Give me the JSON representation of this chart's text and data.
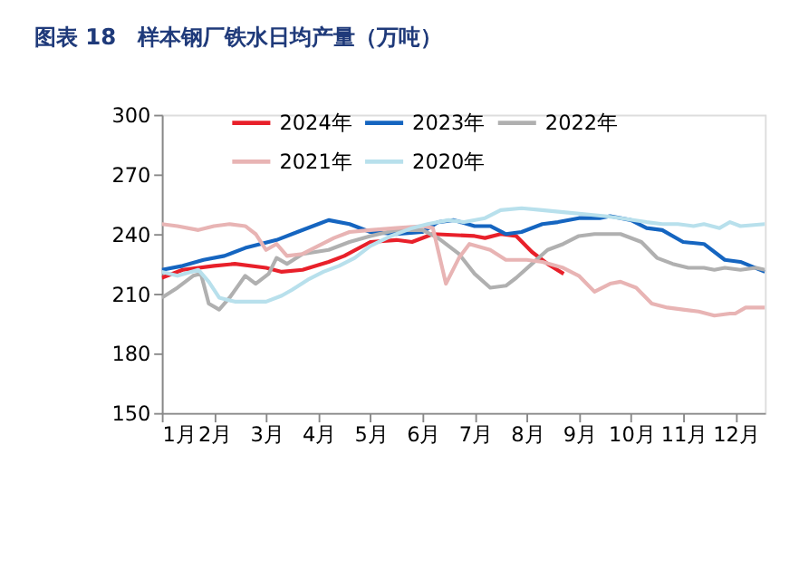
{
  "chart_data": {
    "type": "line",
    "title": "图表 18　样本钢厂铁水日均产量（万吨）",
    "xlim": [
      1,
      12.57
    ],
    "xticks": [
      {
        "value": 1,
        "label": "1月"
      },
      {
        "value": 2,
        "label": "2月"
      },
      {
        "value": 3,
        "label": "3月"
      },
      {
        "value": 4,
        "label": "4月"
      },
      {
        "value": 5,
        "label": "5月"
      },
      {
        "value": 6,
        "label": "6月"
      },
      {
        "value": 7,
        "label": "7月"
      },
      {
        "value": 8,
        "label": "8月"
      },
      {
        "value": 9,
        "label": "9月"
      },
      {
        "value": 10,
        "label": "10月"
      },
      {
        "value": 11,
        "label": "11月"
      },
      {
        "value": 12,
        "label": "12月"
      }
    ],
    "ylim": [
      150,
      300
    ],
    "yticks": [
      150,
      180,
      210,
      240,
      270,
      300
    ],
    "grid": false,
    "legend": "top",
    "marker": "none",
    "line_style": "solid",
    "series": [
      {
        "name": "2024年",
        "color": "#e8202a",
        "x": [
          1,
          1.4,
          2,
          2.4,
          3,
          3.3,
          3.7,
          4.2,
          4.5,
          5.0,
          5.5,
          5.8,
          6.2,
          7.0,
          7.2,
          7.5,
          7.8,
          8.1,
          8.4,
          8.71
        ],
        "values": [
          218,
          222,
          224,
          225,
          223,
          221,
          222,
          226,
          229,
          236,
          237,
          236,
          240,
          239,
          238,
          240,
          239,
          231,
          225,
          220
        ]
      },
      {
        "name": "2023年",
        "color": "#1565c0",
        "x": [
          1,
          1.4,
          1.8,
          2.2,
          2.6,
          3.2,
          3.6,
          4.0,
          4.2,
          4.6,
          5.0,
          5.5,
          6.0,
          6.3,
          6.6,
          7.0,
          7.3,
          7.6,
          7.9,
          8.3,
          8.6,
          9.0,
          9.4,
          9.6,
          10.0,
          10.3,
          10.6,
          11.0,
          11.4,
          11.8,
          12.1,
          12.57
        ],
        "values": [
          222,
          224,
          227,
          229,
          233,
          237,
          241,
          245,
          247,
          245,
          241,
          240,
          241,
          246,
          247,
          244,
          244,
          240,
          241,
          245,
          246,
          248,
          248,
          249,
          247,
          243,
          242,
          236,
          235,
          227,
          226,
          221
        ]
      },
      {
        "name": "2022年",
        "color": "#b0b0b0",
        "x": [
          1,
          1.3,
          1.6,
          1.75,
          1.9,
          2.1,
          2.3,
          2.6,
          2.8,
          3.05,
          3.2,
          3.4,
          3.7,
          4.2,
          4.6,
          5.0,
          5.5,
          6.0,
          6.3,
          6.7,
          7.0,
          7.3,
          7.6,
          7.8,
          8.1,
          8.4,
          8.7,
          9.0,
          9.3,
          9.8,
          10.2,
          10.5,
          10.8,
          11.1,
          11.4,
          11.6,
          11.8,
          12.1,
          12.4,
          12.57
        ],
        "values": [
          208,
          213,
          219,
          220,
          205,
          202,
          208,
          219,
          215,
          220,
          228,
          225,
          230,
          232,
          236,
          239,
          242,
          242,
          238,
          230,
          220,
          213,
          214,
          218,
          225,
          232,
          235,
          239,
          240,
          240,
          236,
          228,
          225,
          223,
          223,
          222,
          223,
          222,
          223,
          222
        ]
      },
      {
        "name": "2021年",
        "color": "#e8b4b4",
        "x": [
          1,
          1.3,
          1.7,
          2.0,
          2.3,
          2.6,
          2.8,
          3.0,
          3.2,
          3.4,
          3.7,
          4.0,
          4.3,
          4.6,
          5.0,
          5.5,
          6.0,
          6.2,
          6.45,
          6.7,
          6.9,
          7.3,
          7.6,
          8.0,
          8.3,
          8.7,
          9.0,
          9.3,
          9.6,
          9.8,
          10.1,
          10.4,
          10.7,
          11.0,
          11.3,
          11.6,
          11.9,
          12.0,
          12.2,
          12.57
        ],
        "values": [
          245,
          244,
          242,
          244,
          245,
          244,
          240,
          232,
          235,
          229,
          230,
          234,
          238,
          241,
          242,
          243,
          244,
          243,
          215,
          228,
          235,
          232,
          227,
          227,
          226,
          223,
          219,
          211,
          215,
          216,
          213,
          205,
          203,
          202,
          201,
          199,
          200,
          200,
          203,
          203
        ]
      },
      {
        "name": "2020年",
        "color": "#b8e0ec",
        "x": [
          1,
          1.3,
          1.7,
          1.9,
          2.1,
          2.4,
          2.9,
          3.0,
          3.3,
          3.5,
          3.8,
          4.1,
          4.4,
          4.7,
          5.0,
          5.4,
          5.8,
          6.1,
          6.5,
          6.8,
          7.2,
          7.5,
          7.9,
          8.3,
          8.7,
          9.1,
          9.5,
          9.8,
          10.3,
          10.6,
          10.9,
          11.2,
          11.4,
          11.7,
          11.9,
          12.1,
          12.57
        ],
        "values": [
          221,
          219,
          222,
          216,
          208,
          206,
          206,
          206,
          209,
          212,
          217,
          221,
          224,
          228,
          234,
          239,
          243,
          245,
          247,
          246,
          248,
          252,
          253,
          252,
          251,
          250,
          249,
          248,
          246,
          245,
          245,
          244,
          245,
          243,
          246,
          244,
          245
        ]
      }
    ]
  }
}
